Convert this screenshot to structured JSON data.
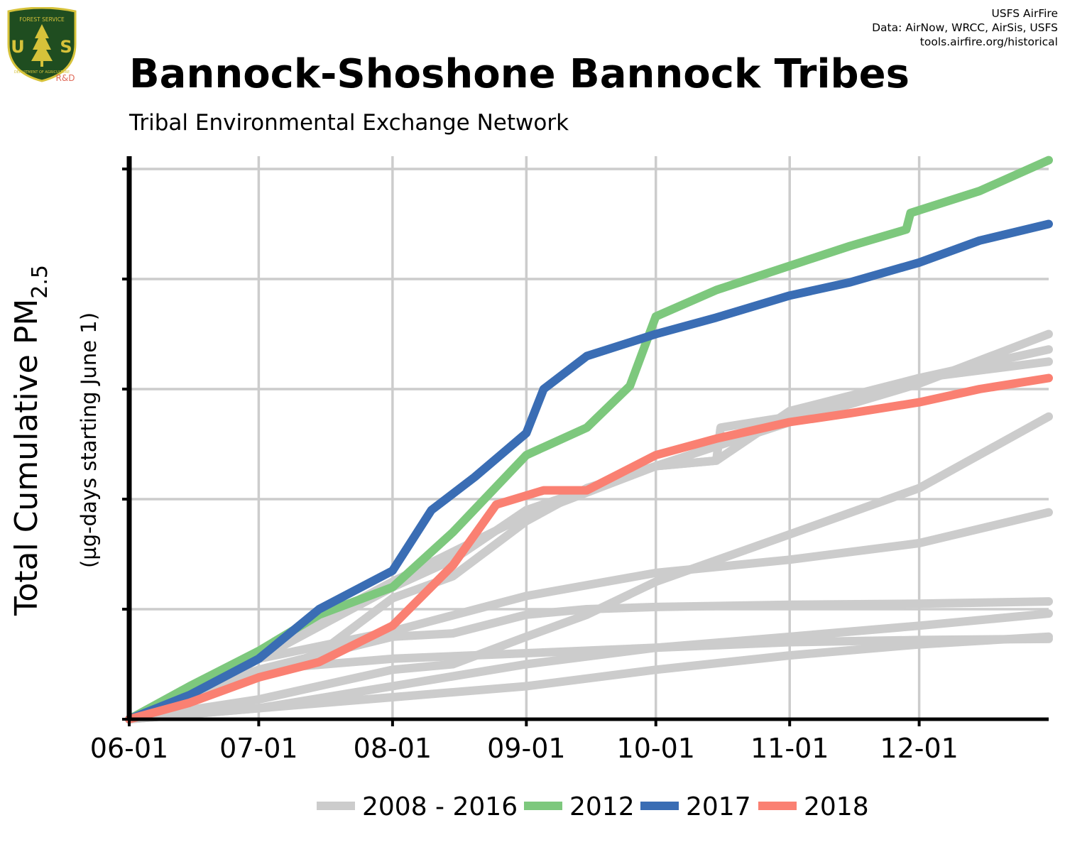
{
  "header": {
    "title": "Bannock-Shoshone Bannock Tribes",
    "subtitle": "Tribal Environmental Exchange Network",
    "credits": [
      "USFS AirFire",
      "Data: AirNow, WRCC, AirSis, USFS",
      "tools.airfire.org/historical"
    ],
    "logo": {
      "letters": "USA",
      "top_text": "FOREST SERVICE",
      "bottom_text": "DEPARTMENT OF AGRICULTURE",
      "tag": "R&D",
      "colors": {
        "shield": "#1f4d20",
        "gold": "#d6c23a",
        "tag": "#e06b5a"
      }
    }
  },
  "chart_data": {
    "type": "line",
    "ylabel": "Total Cumulative PM2.5",
    "ylabel_main": "Total Cumulative PM",
    "ylabel_sub": "2.5",
    "ylabel2": "(µg-days starting June 1)",
    "x_start": "06-01",
    "x_end": "12-31",
    "x_ticks": [
      "06-01",
      "07-01",
      "08-01",
      "09-01",
      "10-01",
      "11-01",
      "12-01"
    ],
    "ylim": [
      0,
      5
    ],
    "y_ticks": [
      0,
      1,
      2,
      3,
      4,
      5
    ],
    "y_unit": "relative units (y-axis values unlabeled)",
    "grid": true,
    "legend": {
      "position": "bottom",
      "entries": [
        {
          "label": "2008 - 2016",
          "color": "#cccccc"
        },
        {
          "label": "2012",
          "color": "#7dc87d"
        },
        {
          "label": "2017",
          "color": "#3a6db4"
        },
        {
          "label": "2018",
          "color": "#fa8072"
        }
      ]
    },
    "series": [
      {
        "group": "2008 - 2016",
        "color": "#cccccc",
        "points": [
          [
            "06-01",
            0
          ],
          [
            "06-15",
            0.18
          ],
          [
            "07-01",
            0.55
          ],
          [
            "08-01",
            0.8
          ],
          [
            "09-01",
            1.12
          ],
          [
            "10-01",
            1.33
          ],
          [
            "11-01",
            1.45
          ],
          [
            "12-01",
            1.6
          ],
          [
            "12-31",
            1.88
          ]
        ]
      },
      {
        "group": "2008 - 2016",
        "color": "#cccccc",
        "points": [
          [
            "06-01",
            0
          ],
          [
            "07-01",
            0.45
          ],
          [
            "08-01",
            0.75
          ],
          [
            "08-15",
            0.78
          ],
          [
            "09-01",
            0.95
          ],
          [
            "09-15",
            1.0
          ],
          [
            "10-01",
            1.02
          ],
          [
            "11-01",
            1.04
          ],
          [
            "12-01",
            1.05
          ],
          [
            "12-31",
            1.07
          ]
        ]
      },
      {
        "group": "2008 - 2016",
        "color": "#cccccc",
        "points": [
          [
            "06-01",
            0
          ],
          [
            "07-01",
            0.1
          ],
          [
            "08-01",
            0.3
          ],
          [
            "09-01",
            0.5
          ],
          [
            "10-01",
            0.65
          ],
          [
            "11-01",
            0.75
          ],
          [
            "12-01",
            0.85
          ],
          [
            "12-31",
            0.96
          ]
        ]
      },
      {
        "group": "2008 - 2016",
        "color": "#cccccc",
        "points": [
          [
            "06-01",
            0
          ],
          [
            "07-01",
            0.1
          ],
          [
            "08-01",
            0.2
          ],
          [
            "09-01",
            0.3
          ],
          [
            "10-01",
            0.45
          ],
          [
            "11-01",
            0.58
          ],
          [
            "12-01",
            0.68
          ],
          [
            "12-31",
            0.75
          ]
        ]
      },
      {
        "group": "2008 - 2016",
        "color": "#cccccc",
        "points": [
          [
            "06-01",
            0
          ],
          [
            "07-01",
            0.18
          ],
          [
            "08-01",
            0.45
          ],
          [
            "08-15",
            0.5
          ],
          [
            "09-01",
            0.75
          ],
          [
            "09-15",
            0.95
          ],
          [
            "10-01",
            1.25
          ],
          [
            "11-01",
            1.68
          ],
          [
            "12-01",
            2.1
          ],
          [
            "12-31",
            2.75
          ]
        ]
      },
      {
        "group": "2008 - 2016",
        "color": "#cccccc",
        "points": [
          [
            "06-01",
            0
          ],
          [
            "07-01",
            0.55
          ],
          [
            "08-01",
            1.2
          ],
          [
            "08-15",
            1.45
          ],
          [
            "09-01",
            1.9
          ],
          [
            "10-01",
            2.3
          ],
          [
            "10-15",
            2.35
          ],
          [
            "11-01",
            2.8
          ],
          [
            "12-01",
            3.1
          ],
          [
            "12-31",
            3.36
          ]
        ]
      },
      {
        "group": "2008 - 2016",
        "color": "#cccccc",
        "points": [
          [
            "06-01",
            0
          ],
          [
            "07-01",
            0.4
          ],
          [
            "07-15",
            0.6
          ],
          [
            "08-01",
            1.1
          ],
          [
            "08-15",
            1.3
          ],
          [
            "09-01",
            1.8
          ],
          [
            "09-15",
            2.1
          ],
          [
            "10-01",
            2.3
          ],
          [
            "10-15",
            2.35
          ],
          [
            "10-16",
            2.65
          ],
          [
            "11-01",
            2.75
          ],
          [
            "12-01",
            3.1
          ],
          [
            "12-31",
            3.25
          ]
        ]
      },
      {
        "group": "2008 - 2016",
        "color": "#cccccc",
        "points": [
          [
            "06-01",
            0
          ],
          [
            "07-01",
            0.6
          ],
          [
            "08-01",
            1.25
          ],
          [
            "09-01",
            1.85
          ],
          [
            "10-01",
            2.3
          ],
          [
            "11-01",
            2.7
          ],
          [
            "12-01",
            3.05
          ],
          [
            "12-31",
            3.5
          ]
        ]
      },
      {
        "group": "2008 - 2016",
        "color": "#cccccc",
        "points": [
          [
            "06-01",
            0
          ],
          [
            "06-15",
            0.2
          ],
          [
            "07-01",
            0.45
          ],
          [
            "08-01",
            0.55
          ],
          [
            "09-01",
            0.6
          ],
          [
            "10-01",
            0.65
          ],
          [
            "11-01",
            0.7
          ],
          [
            "12-01",
            0.72
          ],
          [
            "12-31",
            0.73
          ]
        ]
      },
      {
        "name": "2012",
        "color": "#7dc87d",
        "points": [
          [
            "06-01",
            0
          ],
          [
            "06-15",
            0.3
          ],
          [
            "07-01",
            0.62
          ],
          [
            "07-15",
            0.95
          ],
          [
            "08-01",
            1.2
          ],
          [
            "08-15",
            1.7
          ],
          [
            "09-01",
            2.4
          ],
          [
            "09-15",
            2.65
          ],
          [
            "09-25",
            3.03
          ],
          [
            "10-01",
            3.66
          ],
          [
            "10-15",
            3.9
          ],
          [
            "11-01",
            4.12
          ],
          [
            "11-15",
            4.3
          ],
          [
            "11-28",
            4.45
          ],
          [
            "11-29",
            4.6
          ],
          [
            "12-15",
            4.8
          ],
          [
            "12-31",
            5.08
          ]
        ]
      },
      {
        "name": "2017",
        "color": "#3a6db4",
        "points": [
          [
            "06-01",
            0
          ],
          [
            "06-15",
            0.22
          ],
          [
            "07-01",
            0.55
          ],
          [
            "07-15",
            1.0
          ],
          [
            "08-01",
            1.35
          ],
          [
            "08-10",
            1.9
          ],
          [
            "08-20",
            2.2
          ],
          [
            "09-01",
            2.6
          ],
          [
            "09-05",
            3.0
          ],
          [
            "09-15",
            3.3
          ],
          [
            "10-01",
            3.5
          ],
          [
            "10-15",
            3.65
          ],
          [
            "11-01",
            3.85
          ],
          [
            "11-15",
            3.97
          ],
          [
            "12-01",
            4.15
          ],
          [
            "12-15",
            4.35
          ],
          [
            "12-31",
            4.5
          ]
        ]
      },
      {
        "name": "2018",
        "color": "#fa8072",
        "points": [
          [
            "06-01",
            0
          ],
          [
            "06-15",
            0.15
          ],
          [
            "07-01",
            0.38
          ],
          [
            "07-15",
            0.52
          ],
          [
            "08-01",
            0.85
          ],
          [
            "08-15",
            1.4
          ],
          [
            "08-25",
            1.95
          ],
          [
            "09-05",
            2.08
          ],
          [
            "09-15",
            2.08
          ],
          [
            "10-01",
            2.4
          ],
          [
            "10-15",
            2.55
          ],
          [
            "11-01",
            2.7
          ],
          [
            "11-15",
            2.78
          ],
          [
            "12-01",
            2.88
          ],
          [
            "12-15",
            3.0
          ],
          [
            "12-31",
            3.1
          ]
        ]
      }
    ]
  }
}
